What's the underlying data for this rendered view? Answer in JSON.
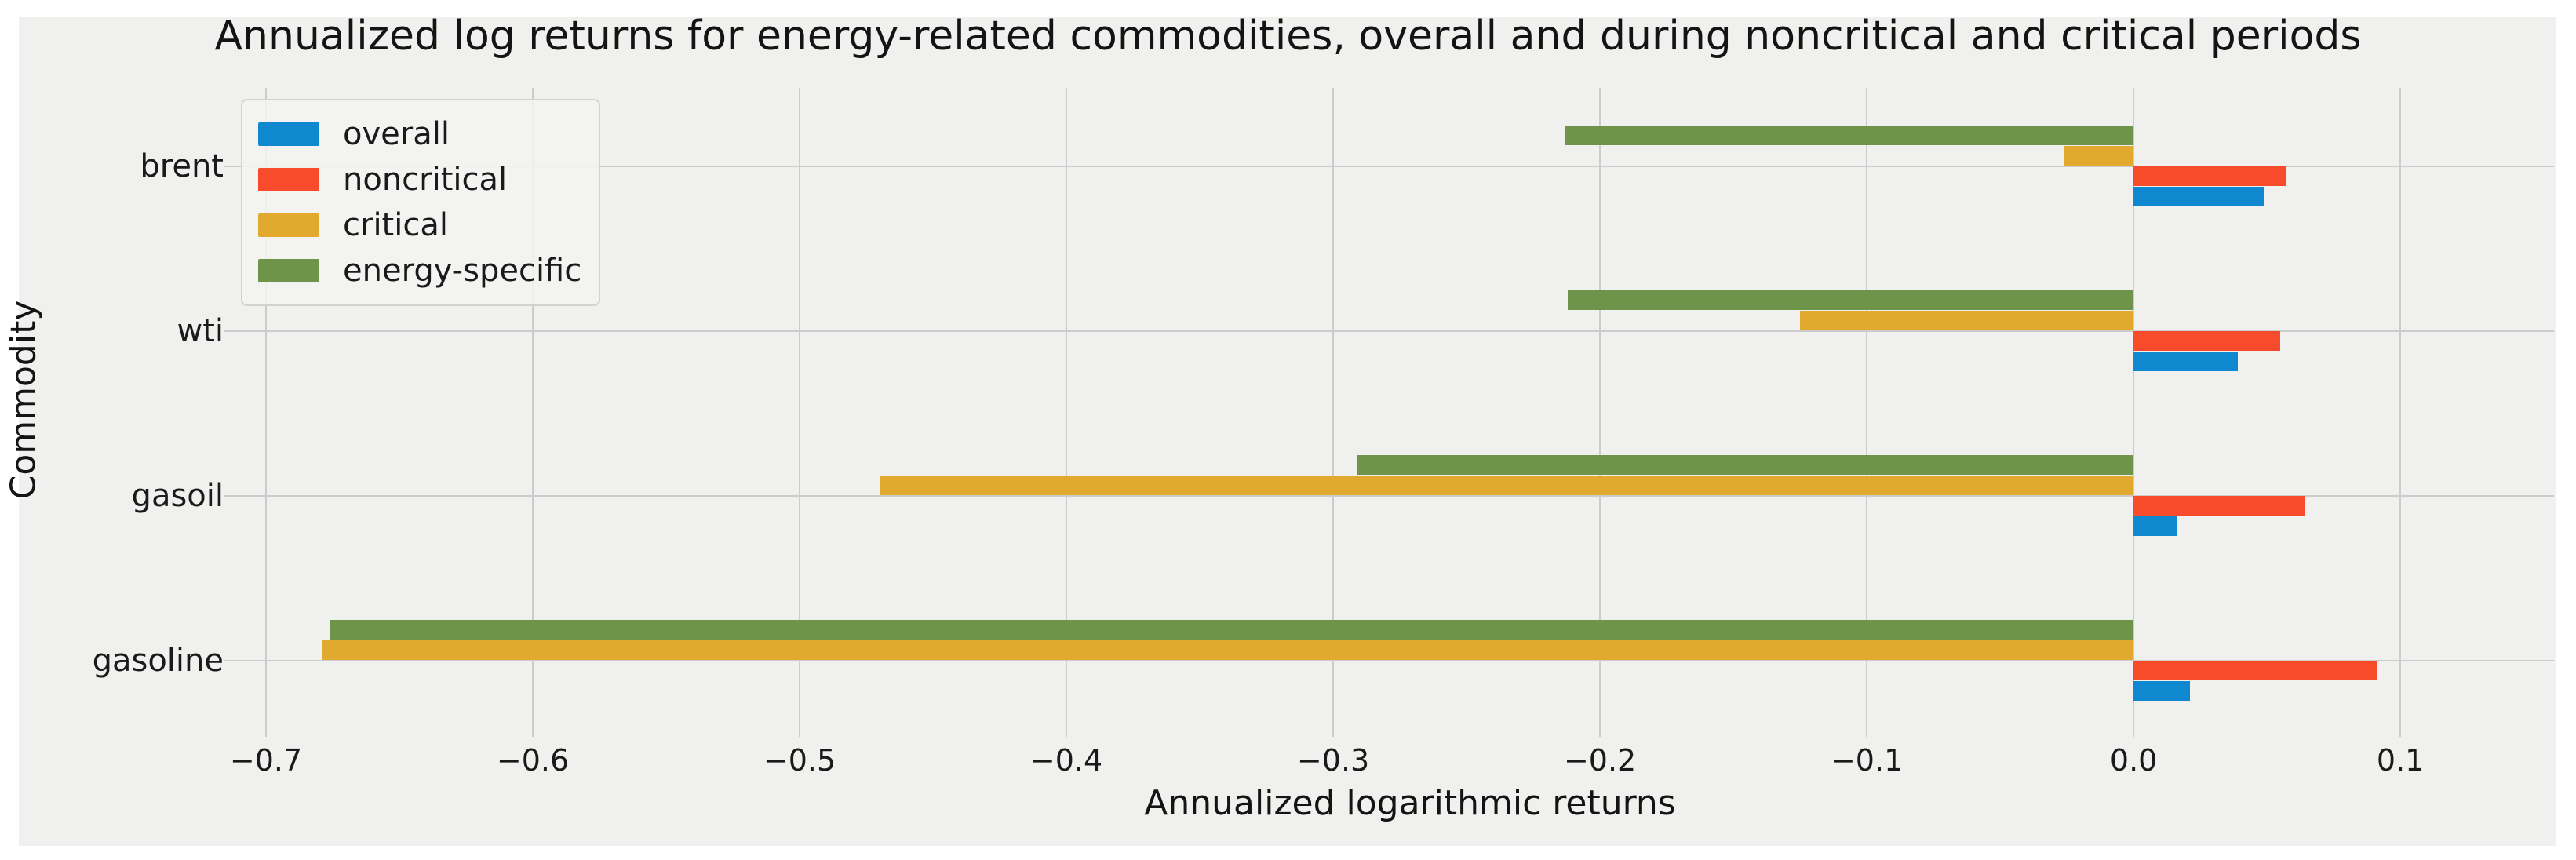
{
  "chart_data": {
    "type": "bar",
    "orientation": "horizontal",
    "title": "Annualized log returns for energy-related commodities, overall and during noncritical and critical periods",
    "xlabel": "Annualized logarithmic returns",
    "ylabel": "Commodity",
    "categories": [
      "brent",
      "wti",
      "gasoil",
      "gasoline"
    ],
    "series": [
      {
        "name": "overall",
        "color": "#1088d0",
        "values": [
          0.049,
          0.039,
          0.016,
          0.021
        ]
      },
      {
        "name": "noncritical",
        "color": "#f84b2c",
        "values": [
          0.057,
          0.055,
          0.064,
          0.091
        ]
      },
      {
        "name": "critical",
        "color": "#e2a92f",
        "values": [
          -0.026,
          -0.125,
          -0.47,
          -0.679
        ]
      },
      {
        "name": "energy-specific",
        "color": "#6d9449",
        "values": [
          -0.213,
          -0.212,
          -0.291,
          -0.676
        ]
      }
    ],
    "xticks": [
      -0.7,
      -0.6,
      -0.5,
      -0.4,
      -0.3,
      -0.2,
      -0.1,
      0.0,
      0.1
    ],
    "xtick_labels": [
      "−0.7",
      "−0.6",
      "−0.5",
      "−0.4",
      "−0.3",
      "−0.2",
      "−0.1",
      "0.0",
      "0.1"
    ],
    "xlim": [
      -0.7,
      0.1576
    ],
    "grid": true,
    "legend_position": "upper left",
    "colors": {
      "figure_background": "#f0f0ee",
      "page_background": "#ffffff",
      "gridline": "#cccccc",
      "text": "#1a1a1a"
    }
  }
}
